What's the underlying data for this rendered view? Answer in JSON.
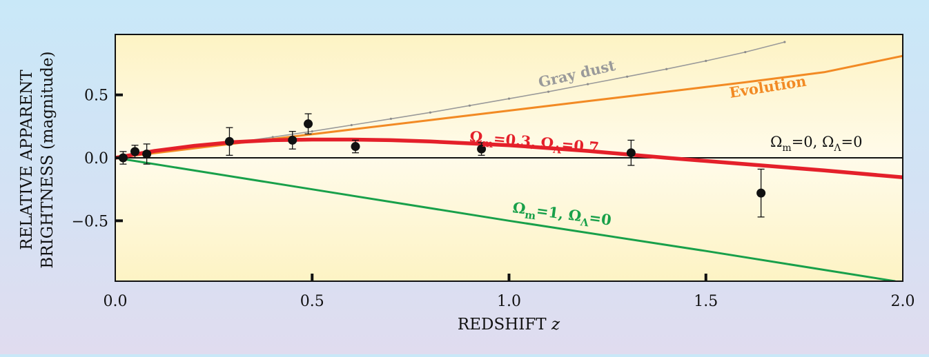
{
  "chart_data": {
    "type": "line",
    "xlabel_main": "REDSHIFT",
    "xlabel_var": "z",
    "ylabel_line1": "RELATIVE APPARENT",
    "ylabel_line2": "BRIGHTNESS (magnitude)",
    "xlim": [
      0,
      2.0
    ],
    "ylim": [
      -0.98,
      0.98
    ],
    "x_ticks": [
      {
        "value": 0.0,
        "label": "0.0"
      },
      {
        "value": 0.5,
        "label": "0.5"
      },
      {
        "value": 1.0,
        "label": "1.0"
      },
      {
        "value": 1.5,
        "label": "1.5"
      },
      {
        "value": 2.0,
        "label": "2.0"
      }
    ],
    "y_ticks": [
      {
        "value": 0.5,
        "label": "0.5"
      },
      {
        "value": 0.0,
        "label": "0.0"
      },
      {
        "value": -0.5,
        "label": "−0.5"
      }
    ],
    "series": [
      {
        "key": "dust",
        "name": "Gray dust",
        "color": "#9a9a9a",
        "x": [
          0,
          0.1,
          0.2,
          0.3,
          0.4,
          0.5,
          0.6,
          0.7,
          0.8,
          0.9,
          1.0,
          1.1,
          1.2,
          1.3,
          1.4,
          1.5,
          1.6,
          1.7
        ],
        "y": [
          0,
          0.04,
          0.08,
          0.12,
          0.165,
          0.21,
          0.26,
          0.31,
          0.36,
          0.415,
          0.47,
          0.525,
          0.585,
          0.645,
          0.705,
          0.77,
          0.84,
          0.92
        ]
      },
      {
        "key": "evolution",
        "name": "Evolution",
        "color": "#f28a24",
        "x": [
          0,
          0.2,
          0.4,
          0.6,
          0.8,
          1.0,
          1.2,
          1.4,
          1.6,
          1.8,
          2.0
        ],
        "y": [
          0,
          0.075,
          0.15,
          0.225,
          0.3,
          0.375,
          0.45,
          0.525,
          0.6,
          0.68,
          0.81
        ]
      },
      {
        "key": "lcdm",
        "name_main": "Ω",
        "name_sub1": "m",
        "name_mid": "=0.3, Ω",
        "name_sub2": "Λ",
        "name_end": "=0.7",
        "color": "#e4202a",
        "x": [
          0,
          0.1,
          0.2,
          0.3,
          0.4,
          0.5,
          0.6,
          0.7,
          0.8,
          1.0,
          1.2,
          1.4,
          1.6,
          1.8,
          2.0
        ],
        "y": [
          0,
          0.055,
          0.095,
          0.125,
          0.14,
          0.145,
          0.145,
          0.14,
          0.13,
          0.1,
          0.055,
          0.0,
          -0.05,
          -0.1,
          -0.155
        ]
      },
      {
        "key": "einstein",
        "name_main": "Ω",
        "name_sub1": "m",
        "name_mid": "=1, Ω",
        "name_sub2": "Λ",
        "name_end": "=0",
        "color": "#18a04a",
        "x": [
          0,
          0.5,
          1.0,
          1.5,
          1.98
        ],
        "y": [
          0,
          -0.25,
          -0.5,
          -0.74,
          -0.98
        ]
      },
      {
        "key": "empty",
        "name_main": "Ω",
        "name_sub1": "m",
        "name_mid": "=0, Ω",
        "name_sub2": "Λ",
        "name_end": "=0",
        "color": "#111111",
        "x": [
          0,
          2.0
        ],
        "y": [
          0,
          0
        ]
      }
    ],
    "data_points": [
      {
        "x": 0.02,
        "y": 0.0,
        "err": 0.05
      },
      {
        "x": 0.05,
        "y": 0.05,
        "err": 0.05
      },
      {
        "x": 0.08,
        "y": 0.03,
        "err": 0.08
      },
      {
        "x": 0.29,
        "y": 0.13,
        "err": 0.11
      },
      {
        "x": 0.45,
        "y": 0.14,
        "err": 0.07
      },
      {
        "x": 0.49,
        "y": 0.27,
        "err": 0.08
      },
      {
        "x": 0.61,
        "y": 0.09,
        "err": 0.05
      },
      {
        "x": 0.93,
        "y": 0.07,
        "err": 0.05
      },
      {
        "x": 1.31,
        "y": 0.04,
        "err": 0.1
      },
      {
        "x": 1.64,
        "y": -0.28,
        "err": 0.19
      }
    ],
    "grid": false,
    "legend": "inline curve labels"
  }
}
